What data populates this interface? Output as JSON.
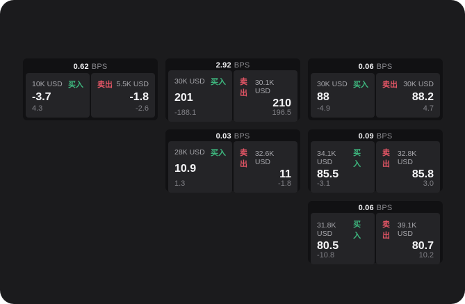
{
  "labels": {
    "bps": "BPS",
    "buy": "买入",
    "sell": "卖出"
  },
  "colors": {
    "container_bg": "#1b1b1d",
    "card_bg": "#111113",
    "panel_bg": "#242427",
    "buy_green": "#3eb87f",
    "sell_red": "#e25565"
  },
  "cards": [
    {
      "bps": "0.62",
      "buy": {
        "size": "10K USD",
        "price": "-3.7",
        "delta": "4.3"
      },
      "sell": {
        "size": "5.5K USD",
        "price": "-1.8",
        "delta": "-2.6"
      }
    },
    {
      "bps": "2.92",
      "buy": {
        "size": "30K USD",
        "price": "201",
        "delta": "-188.1"
      },
      "sell": {
        "size": "30.1K USD",
        "price": "210",
        "delta": "196.5"
      }
    },
    {
      "bps": "0.06",
      "buy": {
        "size": "30K USD",
        "price": "88",
        "delta": "-4.9"
      },
      "sell": {
        "size": "30K USD",
        "price": "88.2",
        "delta": "4.7"
      }
    },
    {
      "bps": "0.03",
      "buy": {
        "size": "28K USD",
        "price": "10.9",
        "delta": "1.3"
      },
      "sell": {
        "size": "32.6K USD",
        "price": "11",
        "delta": "-1.8"
      }
    },
    {
      "bps": "0.09",
      "buy": {
        "size": "34.1K USD",
        "price": "85.5",
        "delta": "-3.1"
      },
      "sell": {
        "size": "32.8K USD",
        "price": "85.8",
        "delta": "3.0"
      }
    },
    {
      "bps": "0.06",
      "buy": {
        "size": "31.8K USD",
        "price": "80.5",
        "delta": "-10.8"
      },
      "sell": {
        "size": "39.1K USD",
        "price": "80.7",
        "delta": "10.2"
      }
    }
  ]
}
